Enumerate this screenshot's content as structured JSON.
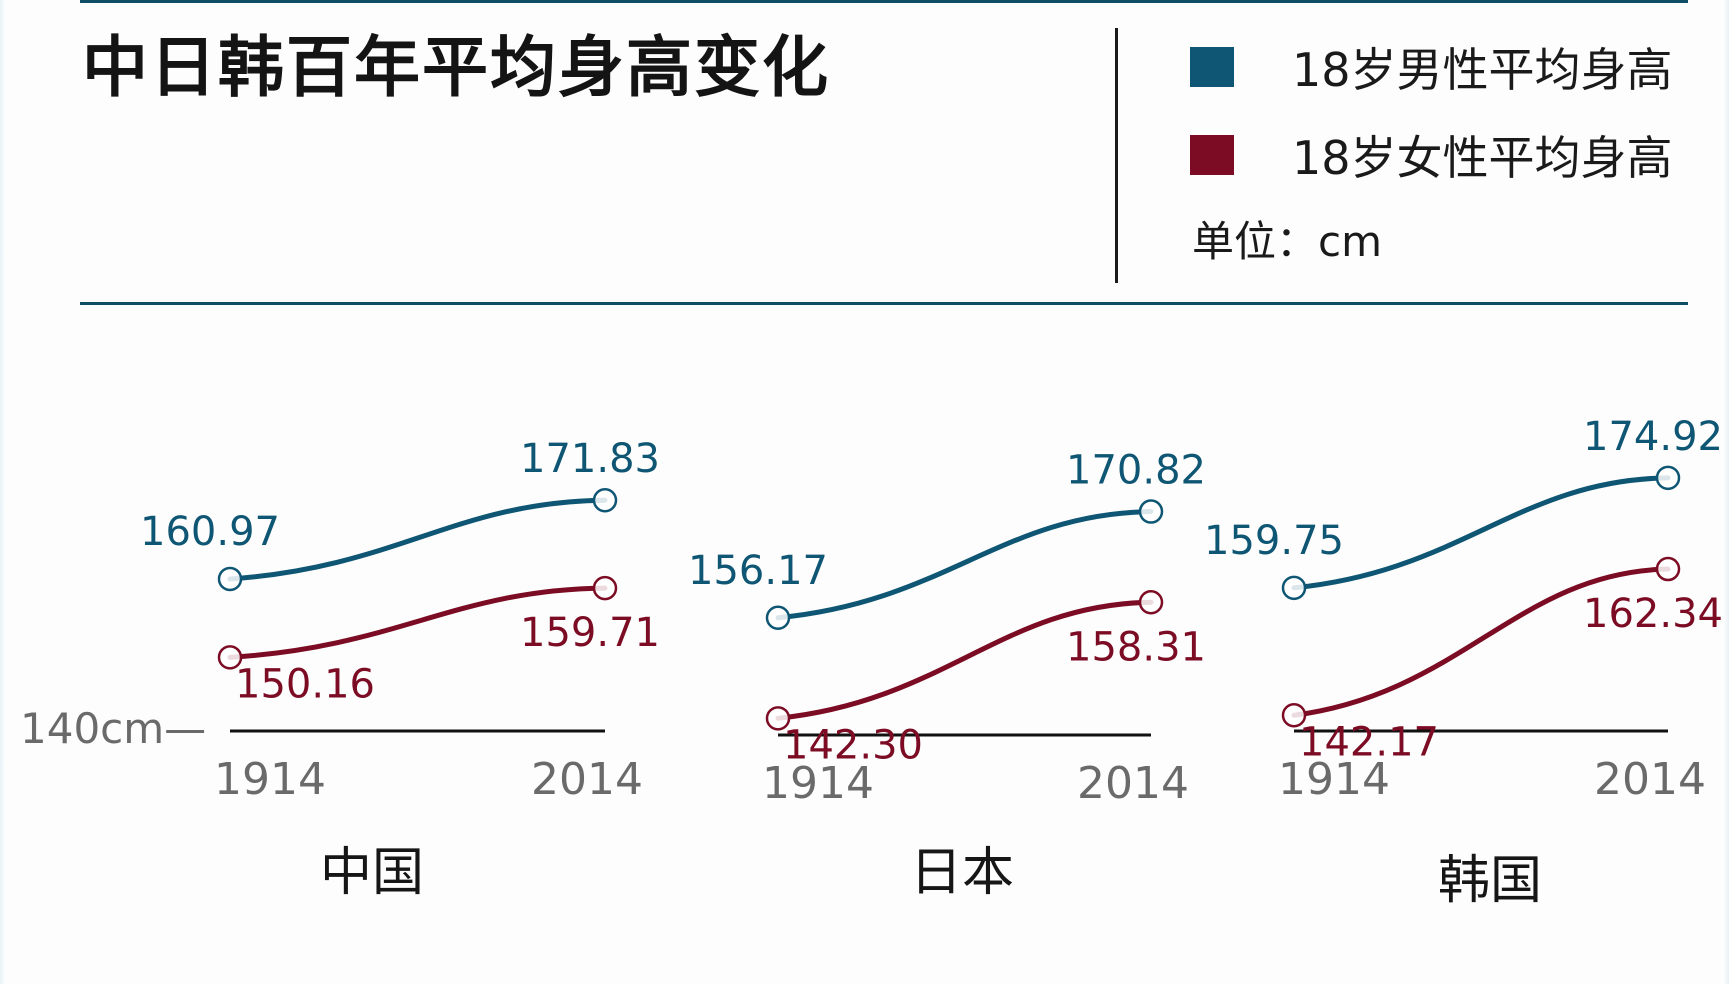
{
  "title": "中日韩百年平均身高变化",
  "legend": {
    "items": [
      {
        "label": "18岁男性平均身高",
        "color": "#0e5673"
      },
      {
        "label": "18岁女性平均身高",
        "color": "#7c0c24"
      }
    ],
    "unit_text": "单位：cm"
  },
  "colors": {
    "male": "#0e5673",
    "female": "#7c0c24",
    "rule": "#0e4f66",
    "baseline": "#111111",
    "tick_text": "#6a6a6a"
  },
  "chart_data": {
    "type": "line",
    "title": "中日韩百年平均身高变化",
    "unit": "cm",
    "baseline_label": "140cm—",
    "baseline_value": 140,
    "x": [
      "1914",
      "2014"
    ],
    "panels": [
      {
        "country": "中国",
        "series": [
          {
            "name": "18岁男性平均身高",
            "key": "male",
            "values": [
              160.97,
              171.83
            ],
            "labels": [
              "160.97",
              "171.83"
            ]
          },
          {
            "name": "18岁女性平均身高",
            "key": "female",
            "values": [
              150.16,
              159.71
            ],
            "labels": [
              "150.16",
              "159.71"
            ]
          }
        ]
      },
      {
        "country": "日本",
        "series": [
          {
            "name": "18岁男性平均身高",
            "key": "male",
            "values": [
              156.17,
              170.82
            ],
            "labels": [
              "156.17",
              "170.82"
            ]
          },
          {
            "name": "18岁女性平均身高",
            "key": "female",
            "values": [
              142.3,
              158.31
            ],
            "labels": [
              "142.30",
              "158.31"
            ]
          }
        ]
      },
      {
        "country": "韩国",
        "series": [
          {
            "name": "18岁男性平均身高",
            "key": "male",
            "values": [
              159.75,
              174.92
            ],
            "labels": [
              "159.75",
              "174.92"
            ]
          },
          {
            "name": "18岁女性平均身高",
            "key": "female",
            "values": [
              142.17,
              162.34
            ],
            "labels": [
              "142.17",
              "162.34"
            ]
          }
        ]
      }
    ]
  }
}
